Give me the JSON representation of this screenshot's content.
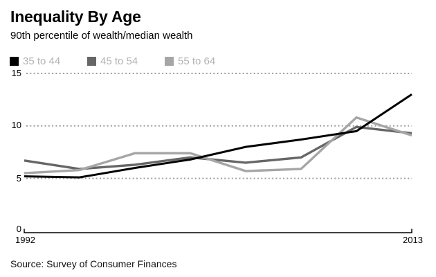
{
  "header": {
    "title": "Inequality By Age",
    "subtitle": "90th percentile of wealth/median wealth"
  },
  "legend": {
    "items": [
      {
        "label": "35 to 44",
        "color": "#000000"
      },
      {
        "label": "45 to 54",
        "color": "#666666"
      },
      {
        "label": "55 to 64",
        "color": "#a6a6a6"
      }
    ]
  },
  "chart_data": {
    "type": "line",
    "title": "Inequality By Age",
    "subtitle": "90th percentile of wealth/median wealth",
    "x": [
      1992,
      1995,
      1998,
      2001,
      2004,
      2007,
      2010,
      2013
    ],
    "series": [
      {
        "name": "35 to 44",
        "color": "#000000",
        "values": [
          5.2,
          5.1,
          6.0,
          6.8,
          8.0,
          8.7,
          9.5,
          13.0
        ]
      },
      {
        "name": "45 to 54",
        "color": "#666666",
        "values": [
          6.7,
          5.9,
          6.3,
          7.0,
          6.5,
          7.0,
          9.9,
          9.3
        ]
      },
      {
        "name": "55 to 64",
        "color": "#a6a6a6",
        "values": [
          5.5,
          5.8,
          7.4,
          7.4,
          5.7,
          5.9,
          10.8,
          9.1
        ]
      }
    ],
    "xlabel": "",
    "ylabel": "",
    "ylim": [
      0,
      15
    ],
    "yticks": [
      0,
      5,
      10,
      15
    ],
    "ytick_labels": [
      "15",
      "10",
      "5",
      "0"
    ],
    "xtick_labels": [
      "1992",
      "2013"
    ],
    "gridline_values": [
      5,
      10,
      15
    ],
    "gridline_color": "#9e9e9e",
    "grid": "dotted horizontal",
    "legend_position": "top-left"
  },
  "source": {
    "text": "Source: Survey of Consumer Finances"
  }
}
